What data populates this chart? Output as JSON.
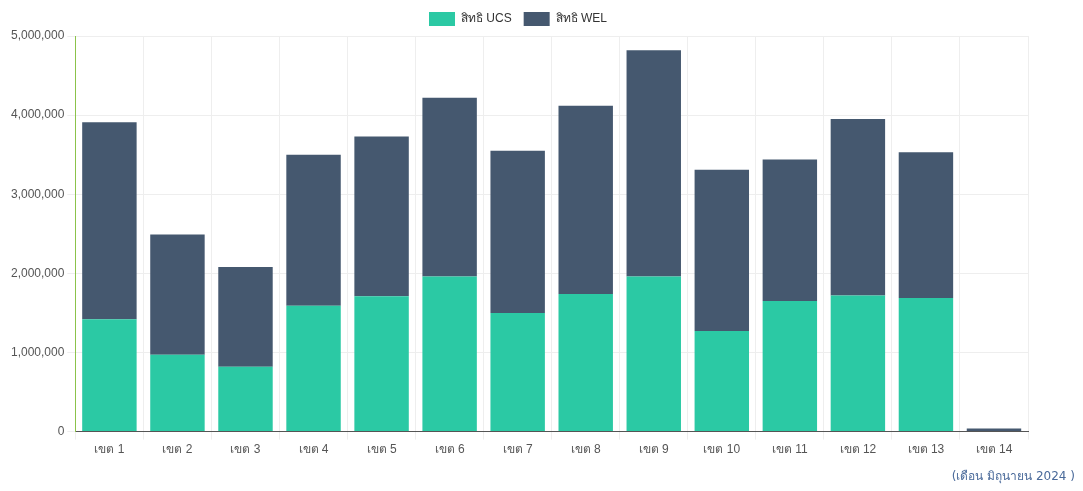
{
  "chart_data": {
    "type": "bar",
    "stacked": true,
    "categories": [
      "เขต 1",
      "เขต 2",
      "เขต 3",
      "เขต 4",
      "เขต 5",
      "เขต 6",
      "เขต 7",
      "เขต 8",
      "เขต 9",
      "เขต 10",
      "เขต 11",
      "เขต 12",
      "เขต 13",
      "เขต 14"
    ],
    "series": [
      {
        "name": "สิทธิ UCS",
        "color": "#2bc9a4",
        "values": [
          1420000,
          970000,
          820000,
          1590000,
          1710000,
          1960000,
          1500000,
          1740000,
          1960000,
          1270000,
          1650000,
          1720000,
          1690000,
          null
        ]
      },
      {
        "name": "สิทธิ WEL",
        "color": "#45586f",
        "values": [
          2490000,
          1520000,
          1260000,
          1910000,
          2020000,
          2260000,
          2050000,
          2380000,
          2860000,
          2040000,
          1790000,
          2230000,
          1840000,
          40000
        ]
      }
    ],
    "ylim": [
      0,
      5000000
    ],
    "yticks": [
      0,
      {
        "value": 1000000,
        "label": "1,000,000"
      },
      {
        "value": 2000000,
        "label": "2,000,000"
      },
      {
        "value": 3000000,
        "label": "3,000,000"
      },
      {
        "value": 4000000,
        "label": "4,000,000"
      },
      {
        "value": 5000000,
        "label": "5,000,000"
      }
    ],
    "grid": true,
    "legend": "top",
    "annotations": [
      "(เดือน มิถุนายน 2024 )"
    ]
  }
}
